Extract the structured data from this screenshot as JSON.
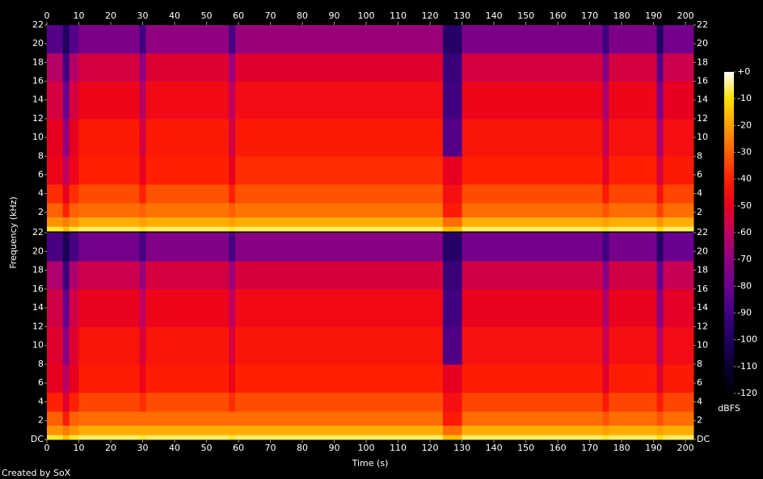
{
  "chart_data": {
    "type": "spectrogram",
    "x_label": "Time (s)",
    "y_label": "Frequency (kHz)",
    "credit": "Created by SoX",
    "xlim": [
      0,
      202.5
    ],
    "xticks": [
      0,
      10,
      20,
      30,
      40,
      50,
      60,
      70,
      80,
      90,
      100,
      110,
      120,
      130,
      140,
      150,
      160,
      170,
      180,
      190,
      200
    ],
    "ylim": [
      0,
      22
    ],
    "time_edges": [
      0,
      5,
      7,
      10,
      29,
      31,
      57,
      59,
      124,
      130,
      174,
      176,
      191,
      193,
      202.5
    ],
    "freq_edges": [
      0,
      0.5,
      1.5,
      3,
      5,
      8,
      12,
      16,
      19,
      22
    ],
    "channels": [
      {
        "yticks": [
          2,
          4,
          6,
          8,
          10,
          12,
          14,
          16,
          18,
          20,
          22
        ],
        "values": [
          [
            -8,
            -22,
            -30,
            -38,
            -48,
            -50,
            -55,
            -62,
            -85
          ],
          [
            -15,
            -25,
            -40,
            -50,
            -60,
            -70,
            -80,
            -90,
            -100
          ],
          [
            -8,
            -22,
            -30,
            -38,
            -48,
            -50,
            -55,
            -62,
            -85
          ],
          [
            -6,
            -18,
            -28,
            -33,
            -40,
            -42,
            -48,
            -55,
            -75
          ],
          [
            -8,
            -20,
            -30,
            -40,
            -50,
            -55,
            -62,
            -70,
            -90
          ],
          [
            -6,
            -18,
            -27,
            -32,
            -40,
            -42,
            -47,
            -53,
            -70
          ],
          [
            -8,
            -20,
            -30,
            -40,
            -50,
            -55,
            -60,
            -68,
            -88
          ],
          [
            -6,
            -18,
            -27,
            -32,
            -38,
            -42,
            -46,
            -52,
            -68
          ],
          [
            -15,
            -28,
            -42,
            -45,
            -50,
            -85,
            -90,
            -92,
            -98
          ],
          [
            -6,
            -18,
            -28,
            -33,
            -40,
            -43,
            -48,
            -55,
            -75
          ],
          [
            -8,
            -20,
            -32,
            -42,
            -52,
            -58,
            -64,
            -72,
            -90
          ],
          [
            -6,
            -18,
            -28,
            -34,
            -40,
            -44,
            -48,
            -55,
            -75
          ],
          [
            -10,
            -22,
            -35,
            -45,
            -55,
            -65,
            -75,
            -85,
            -100
          ],
          [
            -6,
            -18,
            -28,
            -34,
            -42,
            -45,
            -50,
            -57,
            -78
          ]
        ]
      },
      {
        "yticks": [
          {
            "value": 0,
            "label": "DC"
          },
          2,
          4,
          6,
          8,
          10,
          12,
          14,
          16,
          18,
          20,
          22
        ],
        "values": [
          [
            -8,
            -22,
            -30,
            -40,
            -50,
            -52,
            -56,
            -64,
            -88
          ],
          [
            -15,
            -26,
            -42,
            -52,
            -62,
            -72,
            -82,
            -92,
            -102
          ],
          [
            -8,
            -22,
            -30,
            -40,
            -50,
            -52,
            -56,
            -64,
            -88
          ],
          [
            -6,
            -18,
            -28,
            -34,
            -41,
            -43,
            -49,
            -57,
            -78
          ],
          [
            -8,
            -18,
            -28,
            -38,
            -48,
            -54,
            -60,
            -68,
            -88
          ],
          [
            -6,
            -18,
            -28,
            -33,
            -41,
            -43,
            -48,
            -55,
            -74
          ],
          [
            -8,
            -18,
            -28,
            -38,
            -48,
            -54,
            -60,
            -68,
            -88
          ],
          [
            -6,
            -18,
            -28,
            -33,
            -40,
            -43,
            -47,
            -54,
            -72
          ],
          [
            -15,
            -28,
            -42,
            -45,
            -50,
            -86,
            -90,
            -92,
            -98
          ],
          [
            -6,
            -18,
            -28,
            -34,
            -41,
            -44,
            -49,
            -56,
            -77
          ],
          [
            -8,
            -20,
            -32,
            -42,
            -52,
            -58,
            -64,
            -72,
            -90
          ],
          [
            -6,
            -18,
            -28,
            -34,
            -41,
            -45,
            -49,
            -56,
            -77
          ],
          [
            -10,
            -20,
            -32,
            -42,
            -52,
            -62,
            -72,
            -82,
            -98
          ],
          [
            -6,
            -18,
            -28,
            -34,
            -42,
            -46,
            -51,
            -58,
            -80
          ]
        ]
      }
    ],
    "colorbar": {
      "label": "dBFS",
      "clim": [
        -120,
        0
      ],
      "ticks": [
        {
          "value": 0,
          "label": "+0"
        },
        -10,
        -20,
        -30,
        -40,
        -50,
        -60,
        -70,
        -80,
        -90,
        -100,
        -110,
        -120
      ]
    },
    "colormap": [
      "#000000",
      "#0a0030",
      "#200060",
      "#400080",
      "#6a0090",
      "#900080",
      "#c00060",
      "#e80020",
      "#ff2000",
      "#ff6000",
      "#ffa000",
      "#ffe000",
      "#ffffff"
    ]
  }
}
